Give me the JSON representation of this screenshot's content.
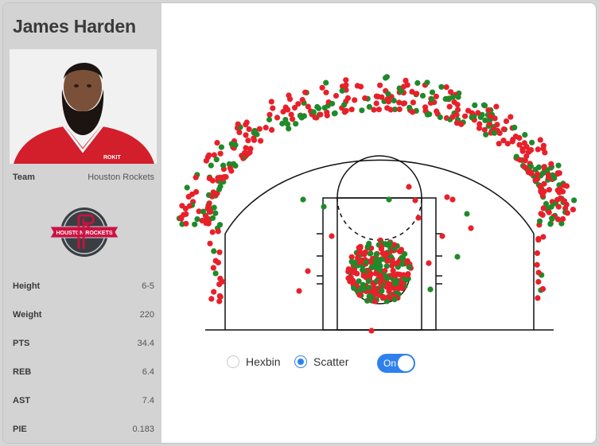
{
  "player": {
    "name": "James Harden",
    "team_label": "Team",
    "team_value": "Houston Rockets",
    "logo_text": "HOUSTON ROCKETS",
    "stats": [
      {
        "label": "Height",
        "value": "6-5"
      },
      {
        "label": "Weight",
        "value": "220"
      },
      {
        "label": "PTS",
        "value": "34.4"
      },
      {
        "label": "REB",
        "value": "6.4"
      },
      {
        "label": "AST",
        "value": "7.4"
      },
      {
        "label": "PIE",
        "value": "0.183"
      }
    ]
  },
  "controls": {
    "hexbin_label": "Hexbin",
    "scatter_label": "Scatter",
    "selected_view": "scatter",
    "toggle_label": "On",
    "toggle_on": true
  },
  "colors": {
    "made": "#1f8a2a",
    "missed": "#e8202a",
    "accent": "#2f80ed",
    "rockets_red": "#ce1141"
  }
}
